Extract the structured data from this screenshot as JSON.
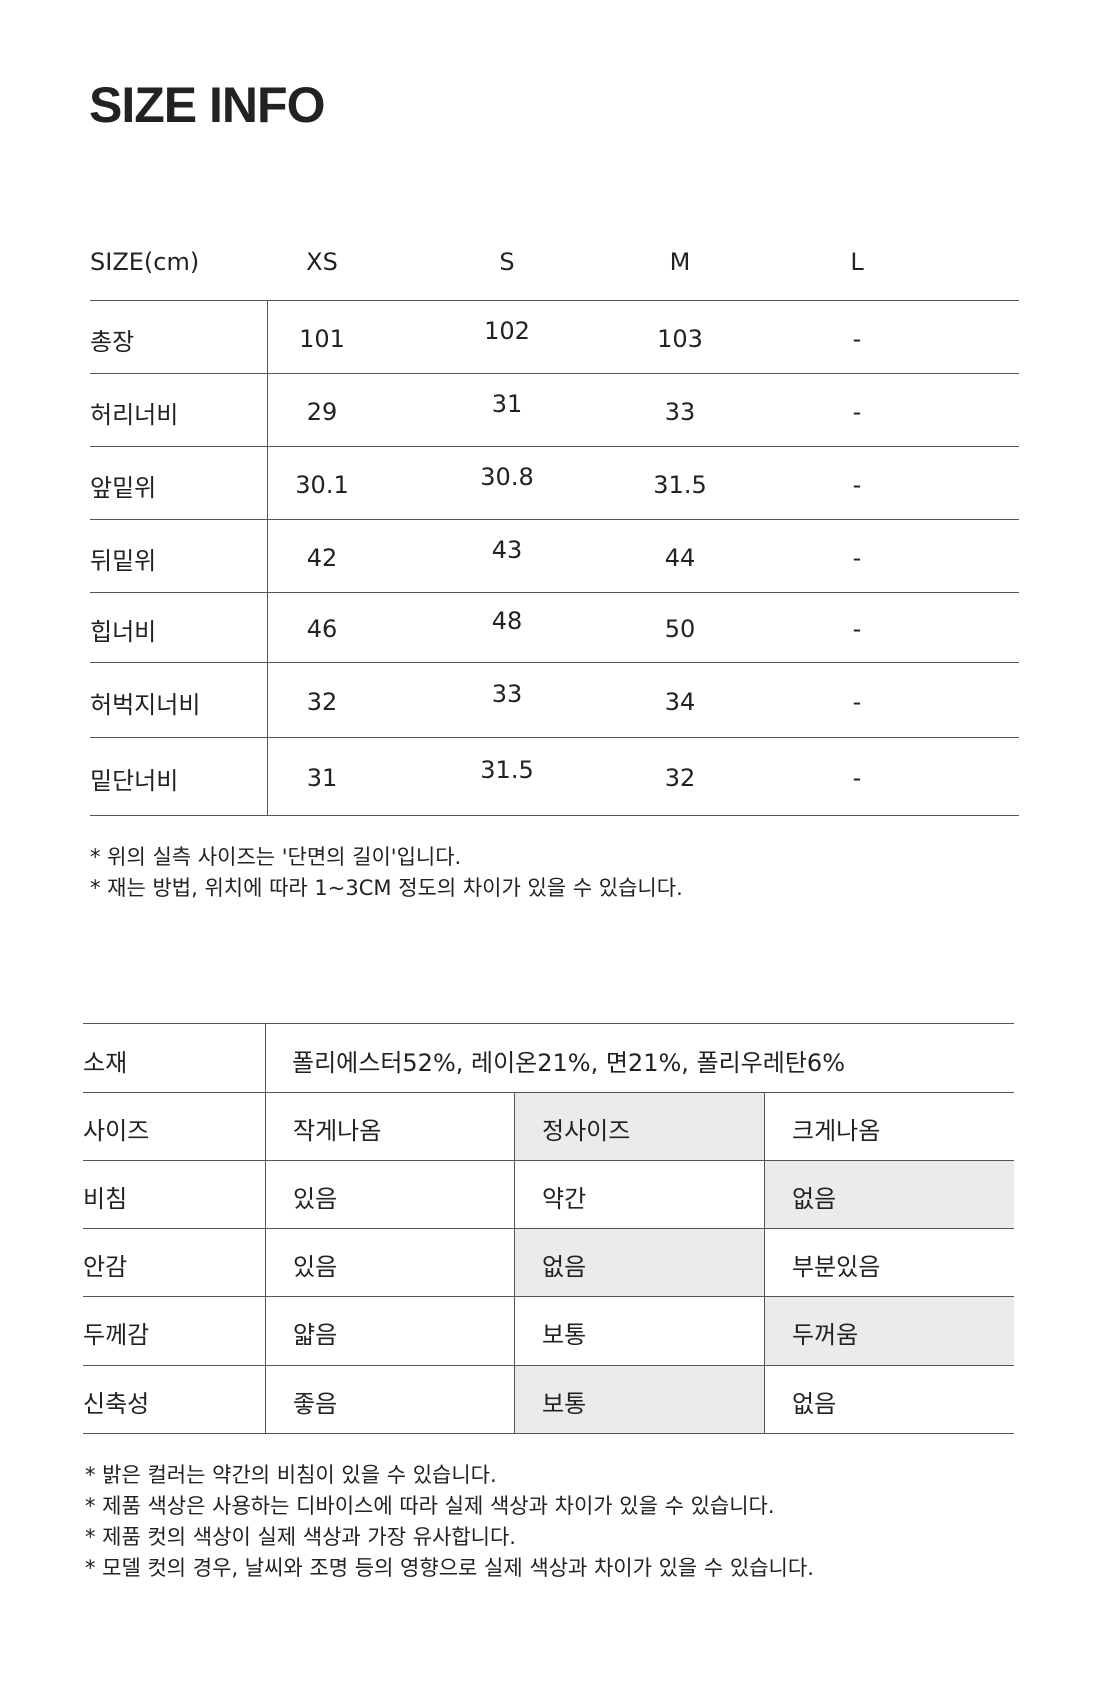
{
  "title": "SIZE INFO",
  "size_table": {
    "headers": [
      "SIZE(cm)",
      "XS",
      "S",
      "M",
      "L"
    ],
    "rows": [
      {
        "label": "총장",
        "values": [
          "101",
          "102",
          "103",
          "-"
        ]
      },
      {
        "label": "허리너비",
        "values": [
          "29",
          "31",
          "33",
          "-"
        ]
      },
      {
        "label": "앞밑위",
        "values": [
          "30.1",
          "30.8",
          "31.5",
          "-"
        ]
      },
      {
        "label": "뒤밑위",
        "values": [
          "42",
          "43",
          "44",
          "-"
        ]
      },
      {
        "label": "힙너비",
        "values": [
          "46",
          "48",
          "50",
          "-"
        ]
      },
      {
        "label": "허벅지너비",
        "values": [
          "32",
          "33",
          "34",
          "-"
        ]
      },
      {
        "label": "밑단너비",
        "values": [
          "31",
          "31.5",
          "32",
          "-"
        ]
      }
    ],
    "notes": [
      "* 위의 실측 사이즈는 '단면의 길이'입니다.",
      "* 재는 방법, 위치에 따라 1~3CM 정도의 차이가 있을 수 있습니다."
    ]
  },
  "fabric_table": {
    "material_label": "소재",
    "material_value": "폴리에스터52%, 레이온21%, 면21%, 폴리우레탄6%",
    "highlight_color": "#ebebeb",
    "rows": [
      {
        "label": "사이즈",
        "options": [
          "작게나옴",
          "정사이즈",
          "크게나옴"
        ],
        "selected": 1
      },
      {
        "label": "비침",
        "options": [
          "있음",
          "약간",
          "없음"
        ],
        "selected": 2
      },
      {
        "label": "안감",
        "options": [
          "있음",
          "없음",
          "부분있음"
        ],
        "selected": 1
      },
      {
        "label": "두께감",
        "options": [
          "얇음",
          "보통",
          "두꺼움"
        ],
        "selected": 2
      },
      {
        "label": "신축성",
        "options": [
          "좋음",
          "보통",
          "없음"
        ],
        "selected": 1
      }
    ],
    "notes": [
      "* 밝은 컬러는 약간의 비침이 있을 수 있습니다.",
      "* 제품 색상은 사용하는 디바이스에 따라 실제 색상과 차이가 있을 수 있습니다.",
      "* 제품 컷의 색상이 실제 색상과 가장 유사합니다.",
      "* 모델 컷의 경우, 날씨와 조명 등의 영향으로 실제 색상과 차이가 있을 수 있습니다."
    ]
  }
}
